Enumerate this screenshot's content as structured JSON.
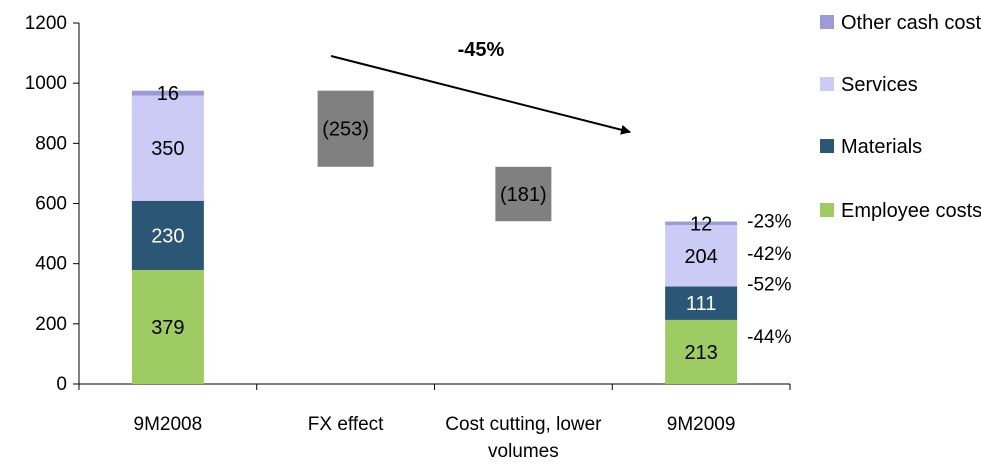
{
  "chart_data": {
    "type": "bar",
    "subtype": "stacked-waterfall",
    "categories": [
      "9M2008",
      "FX effect",
      "Cost cutting, lower volumes",
      "9M2009"
    ],
    "category_lines": [
      [
        "9M2008"
      ],
      [
        "FX effect"
      ],
      [
        "Cost cutting, lower",
        "volumes"
      ],
      [
        "9M2009"
      ]
    ],
    "ylim": [
      0,
      1200
    ],
    "yticks": [
      0,
      200,
      400,
      600,
      800,
      1000,
      1200
    ],
    "series": [
      {
        "name": "Employee costs",
        "color": "#9ECB62",
        "values": [
          379,
          null,
          null,
          213
        ],
        "labels": [
          "379",
          "",
          "",
          "213"
        ],
        "label_color": "#000000"
      },
      {
        "name": "Materials",
        "color": "#2B5676",
        "values": [
          230,
          null,
          null,
          111
        ],
        "labels": [
          "230",
          "",
          "",
          "111"
        ],
        "label_color": "#ffffff"
      },
      {
        "name": "Services",
        "color": "#CBCBF5",
        "values": [
          350,
          null,
          null,
          204
        ],
        "labels": [
          "350",
          "",
          "",
          "204"
        ],
        "label_color": "#000000"
      },
      {
        "name": "Other cash cost",
        "color": "#9B9BD5",
        "values": [
          16,
          null,
          null,
          12
        ],
        "labels": [
          "16",
          "",
          "",
          "12"
        ],
        "label_color": "#000000"
      }
    ],
    "waterfall_steps": [
      {
        "category": "FX effect",
        "from": 975,
        "to": 722,
        "value": -253,
        "label": "(253)",
        "color": "#808080"
      },
      {
        "category": "Cost cutting, lower volumes",
        "from": 722,
        "to": 541,
        "value": -181,
        "label": "(181)",
        "color": "#808080"
      }
    ],
    "change_labels": [
      {
        "series": "Other cash cost",
        "text": "-23%"
      },
      {
        "series": "Services",
        "text": "-42%"
      },
      {
        "series": "Materials",
        "text": "-52%"
      },
      {
        "series": "Employee costs",
        "text": "-44%"
      }
    ],
    "annotation": {
      "text": "-45%",
      "from_category": "9M2008",
      "to_category": "9M2009"
    },
    "legend": {
      "placement": "right",
      "order": [
        "Other cash cost",
        "Services",
        "Materials",
        "Employee costs"
      ]
    },
    "grid": false,
    "title": "",
    "xlabel": "",
    "ylabel": ""
  }
}
